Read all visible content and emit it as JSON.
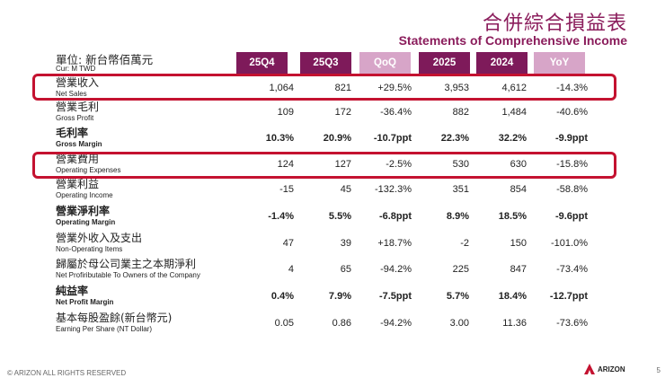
{
  "title": {
    "zh": "合併綜合損益表",
    "en": "Statements of Comprehensive Income"
  },
  "unit": {
    "zh": "單位: 新台幣佰萬元",
    "en": "Cur: M TWD"
  },
  "columns": [
    "25Q4",
    "25Q3",
    "QoQ",
    "2025",
    "2024",
    "YoY"
  ],
  "rows": [
    {
      "zh": "營業收入",
      "en": "Net Sales",
      "values": [
        "1,064",
        "821",
        "+29.5%",
        "3,953",
        "4,612",
        "-14.3%"
      ]
    },
    {
      "zh": "營業毛利",
      "en": "Gross Profit",
      "values": [
        "109",
        "172",
        "-36.4%",
        "882",
        "1,484",
        "-40.6%"
      ]
    },
    {
      "zh": "毛利率",
      "en": "Gross Margin",
      "values": [
        "10.3%",
        "20.9%",
        "-10.7ppt",
        "22.3%",
        "32.2%",
        "-9.9ppt"
      ]
    },
    {
      "zh": "營業費用",
      "en": "Operating Expenses",
      "values": [
        "124",
        "127",
        "-2.5%",
        "530",
        "630",
        "-15.8%"
      ]
    },
    {
      "zh": "營業利益",
      "en": "Operating Income",
      "values": [
        "-15",
        "45",
        "-132.3%",
        "351",
        "854",
        "-58.8%"
      ]
    },
    {
      "zh": "營業淨利率",
      "en": "Operating Margin",
      "values": [
        "-1.4%",
        "5.5%",
        "-6.8ppt",
        "8.9%",
        "18.5%",
        "-9.6ppt"
      ]
    },
    {
      "zh": "營業外收入及支出",
      "en": "Non-Operating Items",
      "values": [
        "47",
        "39",
        "+18.7%",
        "-2",
        "150",
        "-101.0%"
      ]
    },
    {
      "zh": "歸屬於母公司業主之本期淨利",
      "en": "Net Profiributable To Owners of the Company",
      "values": [
        "4",
        "65",
        "-94.2%",
        "225",
        "847",
        "-73.4%"
      ]
    },
    {
      "zh": "純益率",
      "en": "Net Profit Margin",
      "values": [
        "0.4%",
        "7.9%",
        "-7.5ppt",
        "5.7%",
        "18.4%",
        "-12.7ppt"
      ]
    },
    {
      "zh": "基本每股盈餘(新台幣元)",
      "en": "Earning Per Share (NT Dollar)",
      "values": [
        "0.05",
        "0.86",
        "-94.2%",
        "3.00",
        "11.36",
        "-73.6%"
      ]
    }
  ],
  "footer": "© ARIZON ALL RIGHTS RESERVED",
  "logo_text": "ARIZON",
  "page_number": "5"
}
